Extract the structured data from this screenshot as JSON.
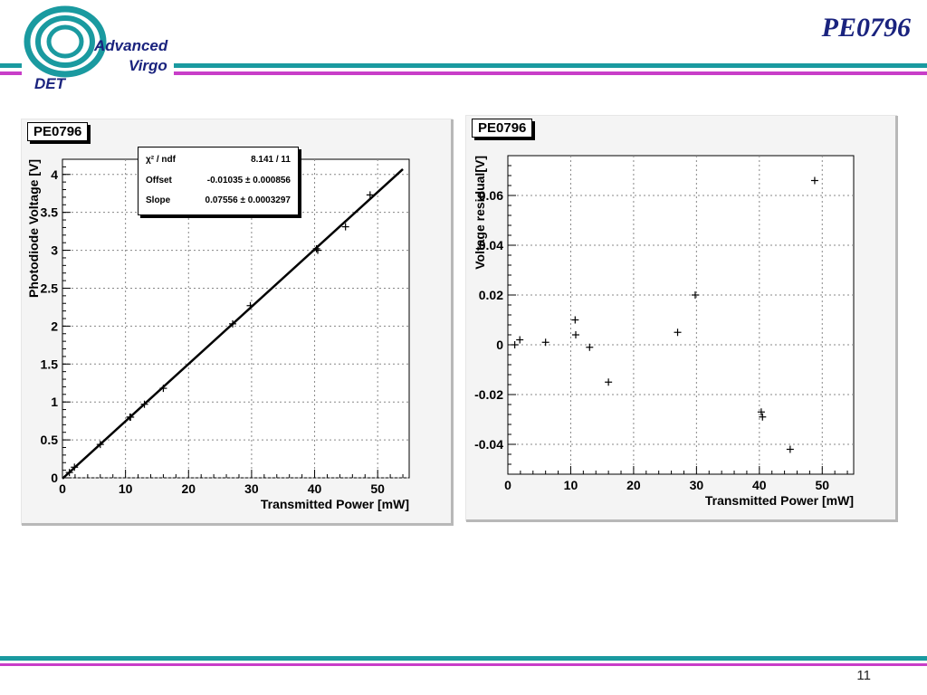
{
  "header": {
    "title": "PE0796",
    "logo": {
      "line1": "Advanced",
      "line2": "Virgo",
      "line3": "DET"
    },
    "colors": {
      "teal": "#1a9aa0",
      "purple": "#c83ec8",
      "navy": "#1a237e"
    }
  },
  "footer": {
    "page_number": "11"
  },
  "left_panel": {
    "label": "PE0796",
    "fit": {
      "chi2_key": "χ² / ndf",
      "chi2_val": "8.141 / 11",
      "offset_key": "Offset",
      "offset_val": "-0.01035 ± 0.000856",
      "slope_key": "Slope",
      "slope_val": "0.07556 ± 0.0003297"
    }
  },
  "right_panel": {
    "label": "PE0796"
  },
  "chart_data": [
    {
      "type": "scatter",
      "title": "PE0796",
      "xlabel": "Transmitted Power [mW]",
      "ylabel": "Photodiode Voltage [V]",
      "xlim": [
        0,
        55
      ],
      "ylim": [
        0,
        4.2
      ],
      "xticks": [
        0,
        10,
        20,
        30,
        40,
        50
      ],
      "yticks": [
        0,
        0.5,
        1,
        1.5,
        2,
        2.5,
        3,
        3.5,
        4
      ],
      "grid": true,
      "series": [
        {
          "points": [
            [
              1.1,
              0.07
            ],
            [
              1.9,
              0.14
            ],
            [
              6,
              0.44
            ],
            [
              10.7,
              0.8
            ],
            [
              10.8,
              0.8
            ],
            [
              13,
              0.97
            ],
            [
              16,
              1.18
            ],
            [
              27,
              2.03
            ],
            [
              29.8,
              2.27
            ],
            [
              40.3,
              3.02
            ],
            [
              40.5,
              3.0
            ],
            [
              44.9,
              3.31
            ],
            [
              48.8,
              3.73
            ]
          ]
        }
      ],
      "fit_line": {
        "offset": -0.01035,
        "slope": 0.07556,
        "x_range": [
          0,
          54
        ]
      }
    },
    {
      "type": "scatter",
      "title": "PE0796",
      "xlabel": "Transmitted Power [mW]",
      "ylabel": "Voltage residual[V]",
      "xlim": [
        0,
        55
      ],
      "ylim": [
        -0.052,
        0.076
      ],
      "xticks": [
        0,
        10,
        20,
        30,
        40,
        50
      ],
      "yticks": [
        -0.04,
        -0.02,
        0,
        0.02,
        0.04,
        0.06
      ],
      "grid": true,
      "series": [
        {
          "points": [
            [
              1.1,
              0.0
            ],
            [
              1.9,
              0.002
            ],
            [
              6,
              0.001
            ],
            [
              10.7,
              0.01
            ],
            [
              10.8,
              0.004
            ],
            [
              13,
              -0.001
            ],
            [
              16,
              -0.015
            ],
            [
              27,
              0.005
            ],
            [
              29.8,
              0.02
            ],
            [
              40.3,
              -0.027
            ],
            [
              40.5,
              -0.029
            ],
            [
              44.9,
              -0.042
            ],
            [
              48.8,
              0.066
            ]
          ]
        }
      ]
    }
  ]
}
